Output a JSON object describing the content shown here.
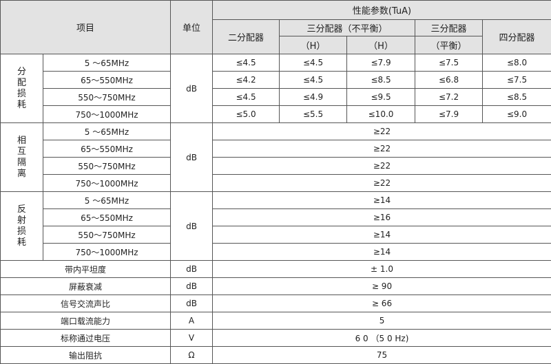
{
  "header": {
    "item": "项目",
    "unit": "单位",
    "performance": "性能参数(TuA)",
    "two_way": "二分配器",
    "three_way_unbalanced": "三分配器（不平衡）",
    "three_way_balanced": "三分配器",
    "four_way": "四分配器",
    "sub_h1": "（H）",
    "sub_h2": "（H）",
    "sub_balanced": "（平衡）"
  },
  "groups": [
    {
      "label": "分配损耗",
      "unit": "dB",
      "rows": [
        {
          "freq": "5 ～65MHz",
          "values": [
            "≤4.5",
            "≤4.5",
            "≤7.9",
            "≤7.5",
            "≤8.0"
          ]
        },
        {
          "freq": "65～550MHz",
          "values": [
            "≤4.2",
            "≤4.5",
            "≤8.5",
            "≤6.8",
            "≤7.5"
          ]
        },
        {
          "freq": "550～750MHz",
          "values": [
            "≤4.5",
            "≤4.9",
            "≤9.5",
            "≤7.2",
            "≤8.5"
          ]
        },
        {
          "freq": "750～1000MHz",
          "values": [
            "≤5.0",
            "≤5.5",
            "≤10.0",
            "≤7.9",
            "≤9.0"
          ]
        }
      ]
    },
    {
      "label": "相互隔离",
      "unit": "dB",
      "rows": [
        {
          "freq": "5 ～65MHz",
          "value": "≥22"
        },
        {
          "freq": "65～550MHz",
          "value": "≥22"
        },
        {
          "freq": "550～750MHz",
          "value": "≥22"
        },
        {
          "freq": "750～1000MHz",
          "value": "≥22"
        }
      ]
    },
    {
      "label": "反射损耗",
      "unit": "dB",
      "rows": [
        {
          "freq": "5 ～65MHz",
          "value": "≥14"
        },
        {
          "freq": "65～550MHz",
          "value": "≥16"
        },
        {
          "freq": "550～750MHz",
          "value": "≥14"
        },
        {
          "freq": "750～1000MHz",
          "value": "≥14"
        }
      ]
    }
  ],
  "singles": [
    {
      "item": "带内平坦度",
      "unit": "dB",
      "value": "± 1.0"
    },
    {
      "item": "屏蔽衰减",
      "unit": "dB",
      "value": "≥ 90"
    },
    {
      "item": "信号交流声比",
      "unit": "dB",
      "value": "≥ 66"
    },
    {
      "item": "端口载流能力",
      "unit": "A",
      "value": "5"
    },
    {
      "item": "标称通过电压",
      "unit": "V",
      "value": "6 0 （5 0 Hz)"
    },
    {
      "item": "输出阻抗",
      "unit": "Ω",
      "value": "75"
    }
  ]
}
